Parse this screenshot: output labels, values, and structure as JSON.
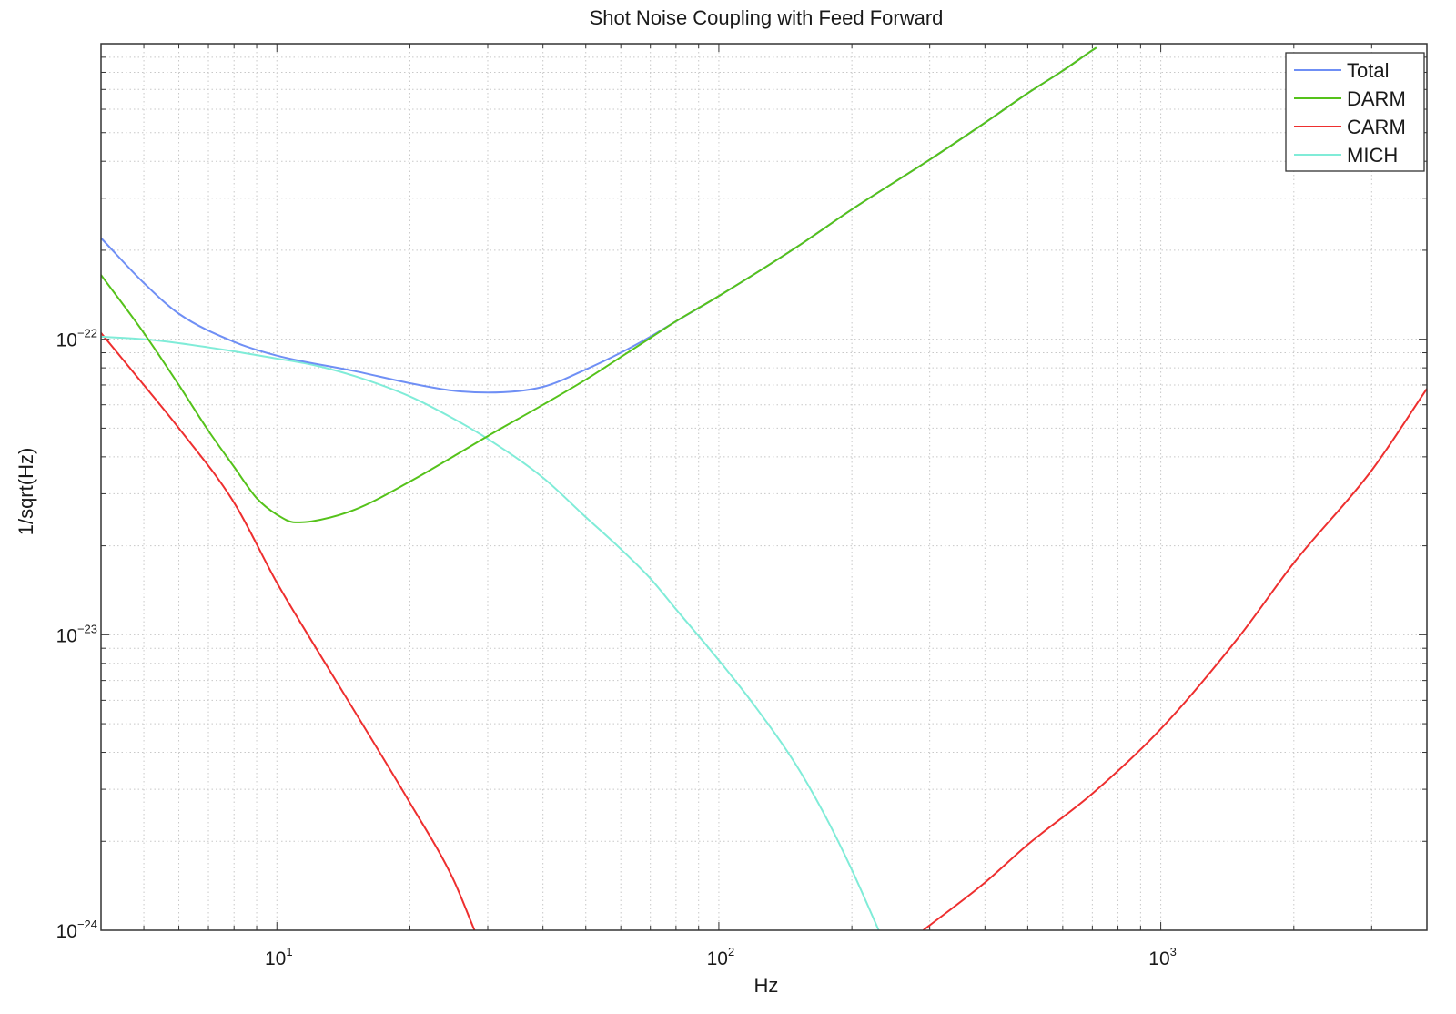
{
  "chart_data": {
    "type": "line",
    "title": "Shot Noise Coupling with Feed Forward",
    "xlabel": "Hz",
    "ylabel": "1/sqrt(Hz)",
    "xscale": "log",
    "yscale": "log",
    "xlim": [
      4,
      4000
    ],
    "ylim": [
      1e-24,
      1e-21
    ],
    "grid": true,
    "legend": {
      "position": "top-right"
    },
    "x_ticks": [
      {
        "base": "10",
        "exp": "1",
        "value": 10
      },
      {
        "base": "10",
        "exp": "2",
        "value": 100
      },
      {
        "base": "10",
        "exp": "3",
        "value": 1000
      }
    ],
    "y_ticks": [
      {
        "base": "10",
        "exp": "−22",
        "value": 1e-22
      },
      {
        "base": "10",
        "exp": "−23",
        "value": 1e-23
      },
      {
        "base": "10",
        "exp": "−24",
        "value": 1e-24
      }
    ],
    "series": [
      {
        "name": "Total",
        "color": "#6f8ff5",
        "points": [
          [
            4,
            2.2e-22
          ],
          [
            5,
            1.55e-22
          ],
          [
            6,
            1.22e-22
          ],
          [
            8,
            9.8e-23
          ],
          [
            10,
            8.8e-23
          ],
          [
            15,
            7.8e-23
          ],
          [
            20,
            7.1e-23
          ],
          [
            25,
            6.7e-23
          ],
          [
            30,
            6.6e-23
          ],
          [
            40,
            6.9e-23
          ],
          [
            50,
            7.9e-23
          ],
          [
            60,
            9e-23
          ],
          [
            70,
            1.02e-22
          ],
          [
            80,
            1.15e-22
          ],
          [
            100,
            1.4e-22
          ],
          [
            150,
            2.05e-22
          ],
          [
            200,
            2.75e-22
          ],
          [
            300,
            4.05e-22
          ],
          [
            400,
            5.4e-22
          ],
          [
            500,
            6.8e-22
          ],
          [
            600,
            8.1e-22
          ],
          [
            700,
            9.5e-22
          ],
          [
            715,
            9.7e-22
          ]
        ]
      },
      {
        "name": "DARM",
        "color": "#55c21a",
        "points": [
          [
            4,
            1.65e-22
          ],
          [
            5,
            1.05e-22
          ],
          [
            6,
            7e-23
          ],
          [
            7,
            4.9e-23
          ],
          [
            8,
            3.7e-23
          ],
          [
            9,
            2.9e-23
          ],
          [
            10,
            2.55e-23
          ],
          [
            11,
            2.4e-23
          ],
          [
            12,
            2.42e-23
          ],
          [
            15,
            2.65e-23
          ],
          [
            20,
            3.3e-23
          ],
          [
            25,
            4e-23
          ],
          [
            30,
            4.7e-23
          ],
          [
            40,
            6e-23
          ],
          [
            50,
            7.3e-23
          ],
          [
            60,
            8.7e-23
          ],
          [
            70,
            1.01e-22
          ],
          [
            80,
            1.15e-22
          ],
          [
            100,
            1.4e-22
          ],
          [
            150,
            2.05e-22
          ],
          [
            200,
            2.75e-22
          ],
          [
            300,
            4.05e-22
          ],
          [
            400,
            5.4e-22
          ],
          [
            500,
            6.8e-22
          ],
          [
            600,
            8.1e-22
          ],
          [
            700,
            9.5e-22
          ],
          [
            715,
            9.7e-22
          ]
        ]
      },
      {
        "name": "CARM",
        "color": "#ee2f2f",
        "points": [
          [
            4,
            1.05e-22
          ],
          [
            5,
            7e-23
          ],
          [
            6,
            5e-23
          ],
          [
            8,
            2.8e-23
          ],
          [
            10,
            1.5e-23
          ],
          [
            12,
            9.5e-24
          ],
          [
            15,
            5.5e-24
          ],
          [
            20,
            2.7e-24
          ],
          [
            25,
            1.5e-24
          ],
          [
            28,
            1e-24
          ]
        ],
        "points2": [
          [
            290,
            1e-24
          ],
          [
            400,
            1.45e-24
          ],
          [
            500,
            1.95e-24
          ],
          [
            700,
            2.9e-24
          ],
          [
            1000,
            4.8e-24
          ],
          [
            1500,
            9.8e-24
          ],
          [
            2000,
            1.75e-23
          ],
          [
            3000,
            3.6e-23
          ],
          [
            4000,
            6.8e-23
          ]
        ]
      },
      {
        "name": "MICH",
        "color": "#80ecd8",
        "points": [
          [
            4,
            1.02e-22
          ],
          [
            5,
            1e-22
          ],
          [
            6,
            9.7e-23
          ],
          [
            8,
            9.1e-23
          ],
          [
            10,
            8.6e-23
          ],
          [
            12,
            8.2e-23
          ],
          [
            15,
            7.5e-23
          ],
          [
            20,
            6.4e-23
          ],
          [
            25,
            5.4e-23
          ],
          [
            30,
            4.6e-23
          ],
          [
            40,
            3.4e-23
          ],
          [
            50,
            2.5e-23
          ],
          [
            60,
            1.95e-23
          ],
          [
            70,
            1.55e-23
          ],
          [
            80,
            1.22e-23
          ],
          [
            100,
            8.2e-24
          ],
          [
            120,
            5.8e-24
          ],
          [
            150,
            3.6e-24
          ],
          [
            175,
            2.4e-24
          ],
          [
            200,
            1.6e-24
          ],
          [
            230,
            1e-24
          ]
        ]
      }
    ]
  }
}
